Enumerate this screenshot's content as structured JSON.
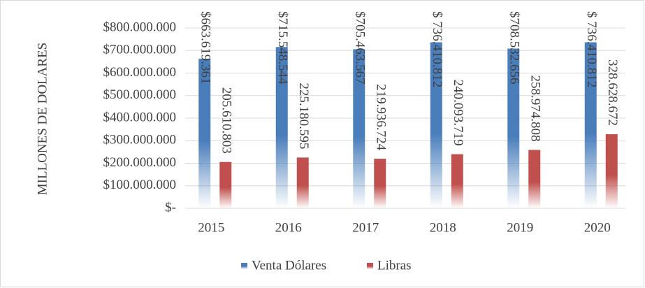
{
  "chart_data": {
    "type": "bar",
    "ylabel": "MILLONES DE DOLARES",
    "categories": [
      "2015",
      "2016",
      "2017",
      "2018",
      "2019",
      "2020"
    ],
    "series": [
      {
        "name": "Venta Dólares",
        "color": "#4a7ebb",
        "values": [
          663619361,
          715548544,
          705463567,
          736410812,
          708532656,
          736410812
        ],
        "value_labels": [
          "$663.619.361",
          "$715.548.544",
          "$705.463.567",
          "$ 736.410.812",
          "$708.532.656",
          "$ 736.410.812"
        ]
      },
      {
        "name": "Libras",
        "color": "#c0504d",
        "values": [
          205610803,
          225180595,
          219936724,
          240093719,
          258974808,
          328628672
        ],
        "value_labels": [
          "205.610.803",
          "225.180.595",
          "219.936.724",
          "240.093.719",
          "258.974.808",
          "328.628.672"
        ]
      }
    ],
    "ylim": [
      0,
      800000000
    ],
    "yticks": [
      {
        "value": 0,
        "label": "$-"
      },
      {
        "value": 100000000,
        "label": "$100.000.000"
      },
      {
        "value": 200000000,
        "label": "$200.000.000"
      },
      {
        "value": 300000000,
        "label": "$300.000.000"
      },
      {
        "value": 400000000,
        "label": "$400.000.000"
      },
      {
        "value": 500000000,
        "label": "$500.000.000"
      },
      {
        "value": 600000000,
        "label": "$600.000.000"
      },
      {
        "value": 700000000,
        "label": "$700.000.000"
      },
      {
        "value": 800000000,
        "label": "$800.000.000"
      }
    ],
    "grid": true,
    "legend": "bottom"
  }
}
